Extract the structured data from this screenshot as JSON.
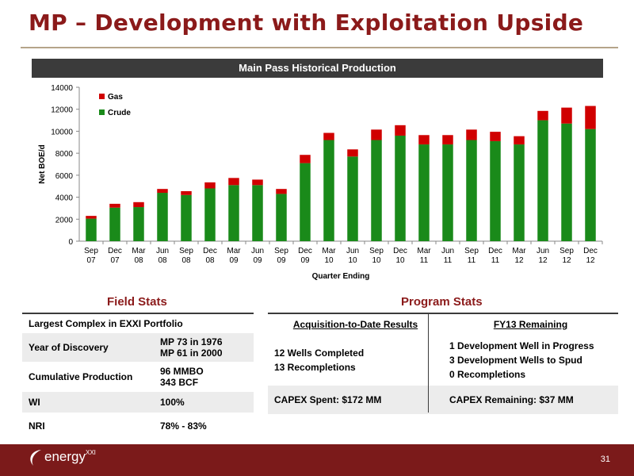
{
  "title": "MP – Development with Exploitation Upside",
  "banner": "Main Pass Historical Production",
  "chart_data": {
    "type": "bar",
    "stacked": true,
    "categories": [
      [
        "Sep",
        "07"
      ],
      [
        "Dec",
        "07"
      ],
      [
        "Mar",
        "08"
      ],
      [
        "Jun",
        "08"
      ],
      [
        "Sep",
        "08"
      ],
      [
        "Dec",
        "08"
      ],
      [
        "Mar",
        "09"
      ],
      [
        "Jun",
        "09"
      ],
      [
        "Sep",
        "09"
      ],
      [
        "Dec",
        "09"
      ],
      [
        "Mar",
        "10"
      ],
      [
        "Jun",
        "10"
      ],
      [
        "Sep",
        "10"
      ],
      [
        "Dec",
        "10"
      ],
      [
        "Mar",
        "11"
      ],
      [
        "Jun",
        "11"
      ],
      [
        "Sep",
        "11"
      ],
      [
        "Dec",
        "11"
      ],
      [
        "Mar",
        "12"
      ],
      [
        "Jun",
        "12"
      ],
      [
        "Sep",
        "12"
      ],
      [
        "Dec",
        "12"
      ]
    ],
    "series": [
      {
        "name": "Crude",
        "color": "#1a8a1a",
        "values": [
          2050,
          3050,
          3100,
          4400,
          4200,
          4800,
          5100,
          5100,
          4300,
          7100,
          9200,
          7700,
          9200,
          9600,
          8800,
          8800,
          9200,
          9100,
          8800,
          11000,
          10700,
          10200
        ]
      },
      {
        "name": "Gas",
        "color": "#d00000",
        "values": [
          250,
          350,
          450,
          350,
          350,
          550,
          650,
          500,
          450,
          750,
          650,
          650,
          950,
          950,
          850,
          850,
          950,
          850,
          750,
          850,
          1450,
          2100
        ]
      }
    ],
    "xlabel": "Quarter Ending",
    "ylabel": "Net BOE/d",
    "ylim": [
      0,
      14000
    ],
    "yticks": [
      0,
      2000,
      4000,
      6000,
      8000,
      10000,
      12000,
      14000
    ],
    "legend": [
      "Gas",
      "Crude"
    ],
    "legend_position": "top-left",
    "grid": false
  },
  "field_stats": {
    "title": "Field Stats",
    "rows": [
      {
        "label": "Largest Complex in EXXI Portfolio",
        "value": []
      },
      {
        "label": "Year of Discovery",
        "value": [
          "MP 73 in 1976",
          "MP 61 in 2000"
        ]
      },
      {
        "label": "Cumulative Production",
        "value": [
          "96 MMBO",
          "343 BCF"
        ]
      },
      {
        "label": "WI",
        "value": [
          "100%"
        ]
      },
      {
        "label": "NRI",
        "value": [
          "78% - 83%"
        ]
      }
    ]
  },
  "program_stats": {
    "title": "Program Stats",
    "headers": [
      "Acquisition-to-Date Results",
      "FY13 Remaining"
    ],
    "row1": {
      "left": [
        "12 Wells Completed",
        "13 Recompletions"
      ],
      "right": [
        "1 Development Well in Progress",
        "3 Development Wells to Spud",
        "0 Recompletions"
      ]
    },
    "row2": {
      "left": "CAPEX Spent: $172 MM",
      "right": "CAPEX Remaining: $37 MM"
    }
  },
  "footer": {
    "logo_text": "energy",
    "logo_sup": "XXI",
    "page_number": "31",
    "color": "#7b1a1a"
  }
}
